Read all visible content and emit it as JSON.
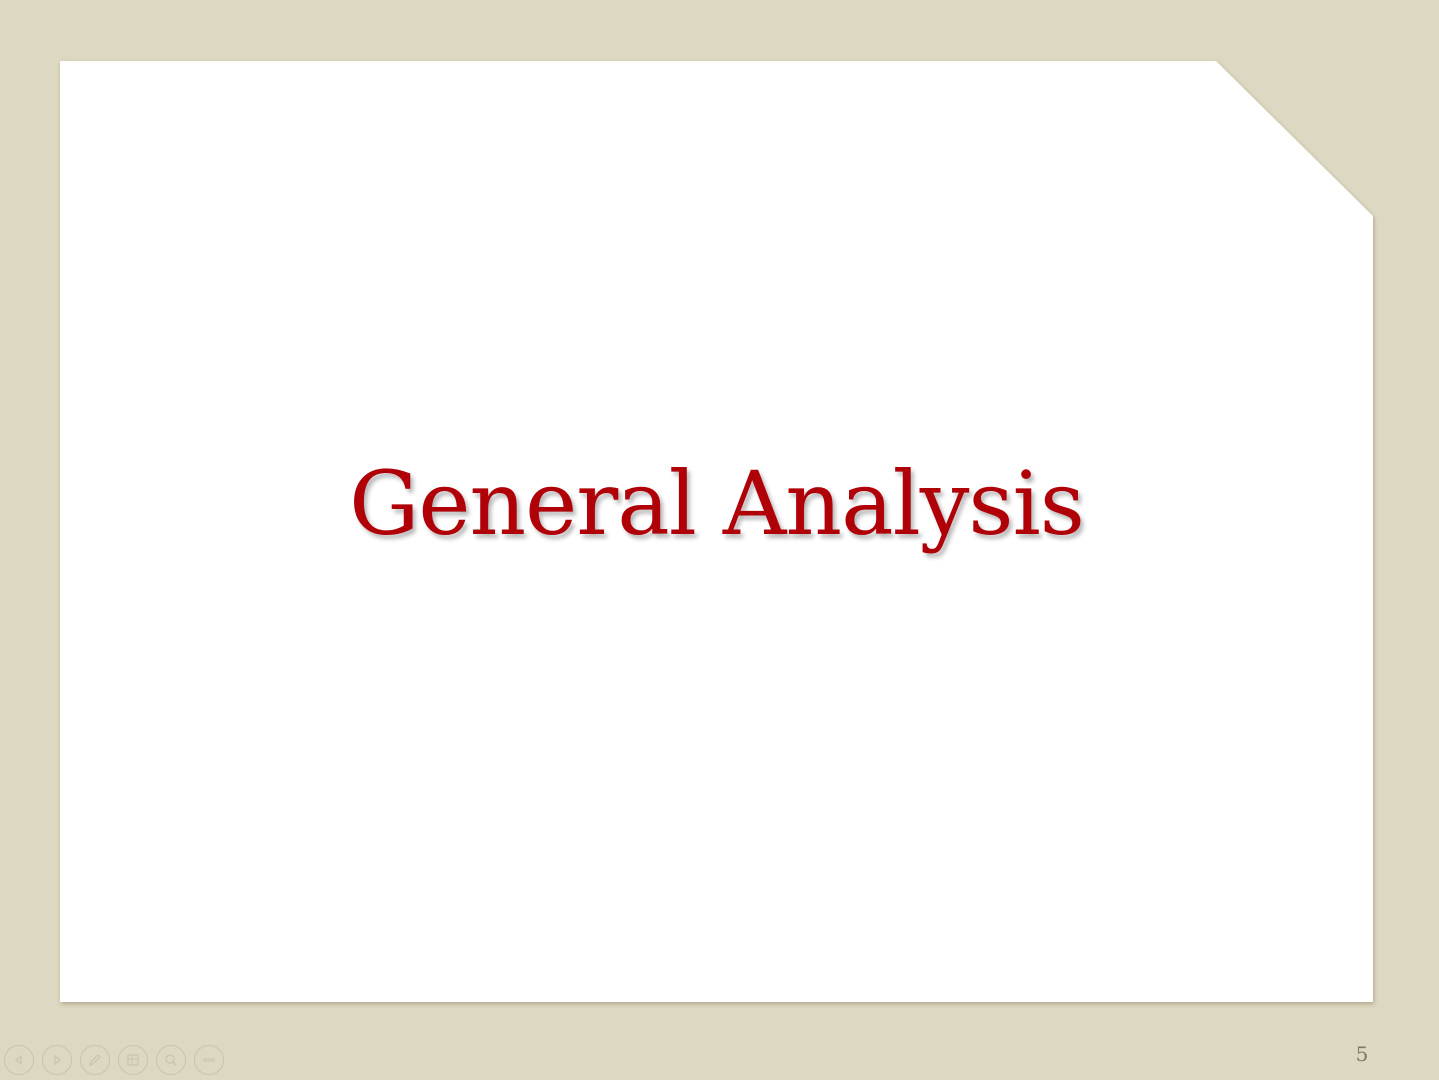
{
  "colors": {
    "background": "#ddd8c1",
    "slide": "#ffffff",
    "title": "#b00008",
    "slide_number": "#7f7a60",
    "toolbar_icon": "#cbc4aa"
  },
  "slide": {
    "title": "General Analysis",
    "number": "5"
  },
  "toolbar": {
    "buttons": [
      {
        "name": "previous-slide",
        "icon": "chevron-left-icon"
      },
      {
        "name": "next-slide",
        "icon": "chevron-right-icon"
      },
      {
        "name": "pen",
        "icon": "pen-icon"
      },
      {
        "name": "see-all-slides",
        "icon": "slides-grid-icon"
      },
      {
        "name": "zoom",
        "icon": "magnifier-icon"
      },
      {
        "name": "more-options",
        "icon": "ellipsis-icon"
      }
    ]
  }
}
